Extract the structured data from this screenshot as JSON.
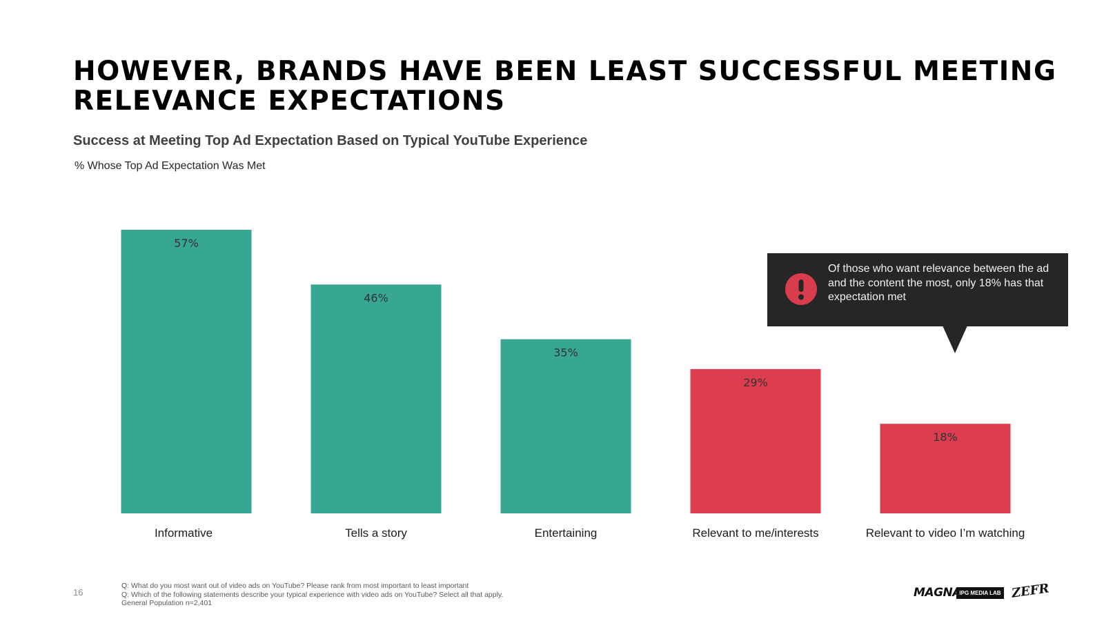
{
  "title": "HOWEVER, BRANDS HAVE BEEN LEAST SUCCESSFUL MEETING RELEVANCE EXPECTATIONS",
  "subtitle": "Success at Meeting Top Ad Expectation Based on Typical YouTube Experience",
  "callout": {
    "text": "Of those who want relevance between the ad and the content the most, only 18% has that expectation met",
    "icon": "exclamation-icon",
    "icon_color": "#d93c4c",
    "background": "#262626"
  },
  "footer": {
    "page_number": "16",
    "notes": [
      "Q: What do you most want out of video ads on YouTube? Please rank from most important to least important",
      "Q: Which of the following statements describe your typical experience with video ads on YouTube? Select all that apply.",
      "General Population n=2,401"
    ],
    "logos": {
      "magna": "MAGNA",
      "ipg": "IPG MEDIA LAB",
      "zefr": "ZEFR"
    }
  },
  "chart_data": {
    "type": "bar",
    "title": "Success at Meeting Top Ad Expectation Based on Typical YouTube Experience",
    "ylabel": "% Whose Top Ad Expectation Was Met",
    "xlabel": "",
    "categories": [
      "Informative",
      "Tells a story",
      "Entertaining",
      "Relevant to me/interests",
      "Relevant to video I’m watching"
    ],
    "values": [
      57,
      46,
      35,
      29,
      18
    ],
    "data_labels": [
      "57%",
      "46%",
      "35%",
      "29%",
      "18%"
    ],
    "bar_colors": [
      "#37a692",
      "#37a692",
      "#37a692",
      "#dc3d4f",
      "#dc3d4f"
    ],
    "ylim": [
      0,
      57
    ],
    "grid": false,
    "legend": "none"
  }
}
